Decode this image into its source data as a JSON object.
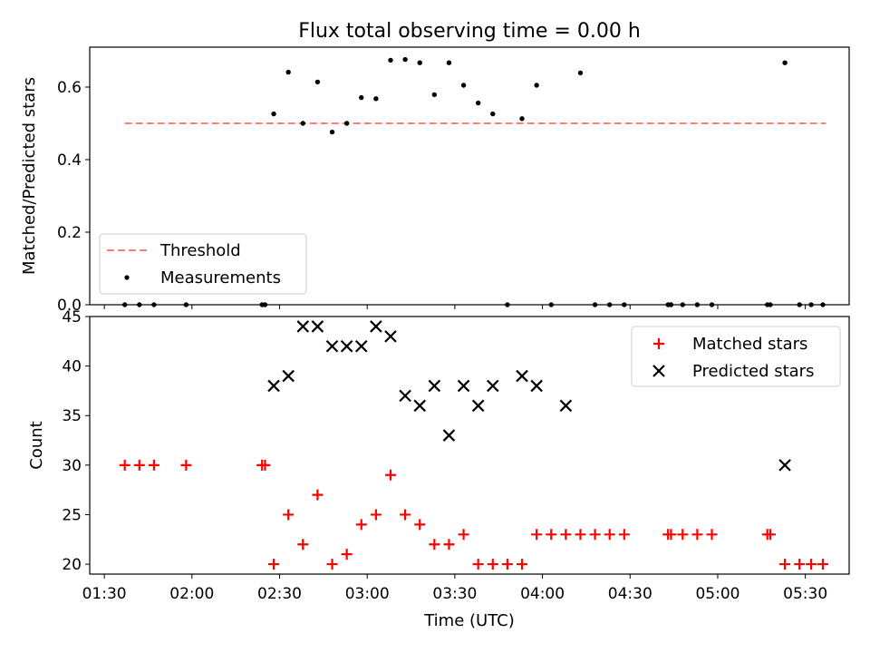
{
  "title": "Flux total observing time = 0.00 h",
  "colors": {
    "threshold": "#ff7f7f",
    "measurement": "#000000",
    "matched": "#ff0000",
    "predicted": "#000000"
  },
  "chart_data": [
    {
      "type": "scatter",
      "panel": "top",
      "title": "Flux total observing time = 0.00 h",
      "xlabel": "",
      "ylabel": "Matched/Predicted stars",
      "ylim": [
        0,
        0.71
      ],
      "yticks": [
        "0.0",
        "0.2",
        "0.4",
        "0.6"
      ],
      "legend_position": "lower left",
      "series": [
        {
          "name": "Threshold",
          "type": "line",
          "style": "dashed",
          "x": [
            "01:37",
            "05:37"
          ],
          "y": [
            0.5,
            0.5
          ]
        },
        {
          "name": "Measurements",
          "type": "scatter",
          "x": [
            "01:37",
            "01:42",
            "01:47",
            "01:58",
            "02:24",
            "02:25",
            "02:28",
            "02:33",
            "02:38",
            "02:43",
            "02:48",
            "02:53",
            "02:58",
            "03:03",
            "03:08",
            "03:13",
            "03:18",
            "03:23",
            "03:28",
            "03:33",
            "03:38",
            "03:43",
            "03:48",
            "03:53",
            "03:58",
            "04:03",
            "04:13",
            "04:18",
            "04:23",
            "04:28",
            "04:43",
            "04:44",
            "04:48",
            "04:53",
            "04:58",
            "05:17",
            "05:18",
            "05:23",
            "05:28",
            "05:32",
            "05:36"
          ],
          "y": [
            0,
            0,
            0,
            0,
            0,
            0,
            0.526,
            0.641,
            0.5,
            0.614,
            0.476,
            0.5,
            0.571,
            0.568,
            0.674,
            0.676,
            0.667,
            0.579,
            0.667,
            0.605,
            0.556,
            0.526,
            0,
            0.513,
            0.605,
            0,
            0.639,
            0,
            0,
            0,
            0,
            0,
            0,
            0,
            0,
            0,
            0,
            0.667,
            0,
            0,
            0
          ]
        }
      ]
    },
    {
      "type": "scatter",
      "panel": "bottom",
      "xlabel": "Time (UTC)",
      "ylabel": "Count",
      "xlim": [
        "01:25",
        "05:45"
      ],
      "ylim": [
        19,
        45
      ],
      "xticks": [
        "01:30",
        "02:00",
        "02:30",
        "03:00",
        "03:30",
        "04:00",
        "04:30",
        "05:00",
        "05:30"
      ],
      "yticks": [
        "20",
        "25",
        "30",
        "35",
        "40",
        "45"
      ],
      "legend_position": "upper right",
      "series": [
        {
          "name": "Matched stars",
          "marker": "+",
          "x": [
            "01:37",
            "01:42",
            "01:47",
            "01:58",
            "02:24",
            "02:25",
            "02:28",
            "02:33",
            "02:38",
            "02:43",
            "02:48",
            "02:53",
            "02:58",
            "03:03",
            "03:08",
            "03:13",
            "03:18",
            "03:23",
            "03:28",
            "03:33",
            "03:38",
            "03:43",
            "03:48",
            "03:53",
            "03:58",
            "04:03",
            "04:08",
            "04:13",
            "04:18",
            "04:23",
            "04:28",
            "04:43",
            "04:44",
            "04:48",
            "04:53",
            "04:58",
            "05:17",
            "05:18",
            "05:23",
            "05:28",
            "05:32",
            "05:36"
          ],
          "y": [
            30,
            30,
            30,
            30,
            30,
            30,
            20,
            25,
            22,
            27,
            20,
            21,
            24,
            25,
            29,
            25,
            24,
            22,
            22,
            23,
            20,
            20,
            20,
            20,
            23,
            23,
            23,
            23,
            23,
            23,
            23,
            23,
            23,
            23,
            23,
            23,
            23,
            23,
            20,
            20,
            20,
            20
          ]
        },
        {
          "name": "Predicted stars",
          "marker": "x",
          "x": [
            "02:28",
            "02:33",
            "02:38",
            "02:43",
            "02:48",
            "02:53",
            "02:58",
            "03:03",
            "03:08",
            "03:13",
            "03:18",
            "03:23",
            "03:28",
            "03:33",
            "03:38",
            "03:43",
            "03:53",
            "03:58",
            "04:08",
            "05:23"
          ],
          "y": [
            38,
            39,
            44,
            44,
            42,
            42,
            42,
            44,
            43,
            37,
            36,
            38,
            33,
            38,
            36,
            38,
            39,
            38,
            36,
            30
          ]
        }
      ]
    }
  ]
}
